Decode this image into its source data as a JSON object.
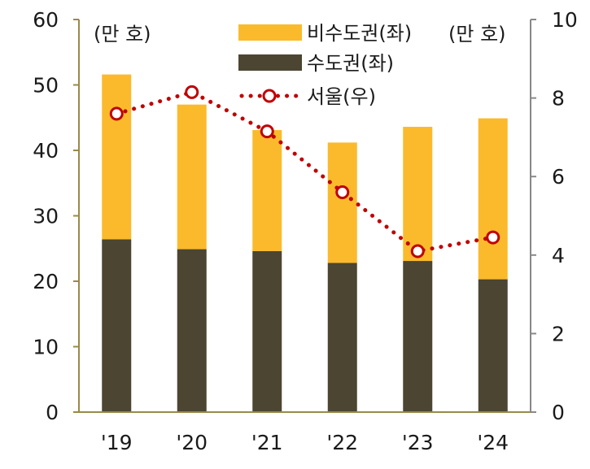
{
  "chart_data": {
    "type": "bar",
    "categories": [
      "'19",
      "'20",
      "'21",
      "'22",
      "'23",
      "'24"
    ],
    "series": [
      {
        "name": "수도권(좌)",
        "kind": "bar",
        "axis": "left",
        "color": "#4b4532",
        "values": [
          26.4,
          24.9,
          24.6,
          22.8,
          23.1,
          20.3
        ]
      },
      {
        "name": "비수도권(좌)",
        "kind": "bar",
        "axis": "left",
        "color": "#fbba2c",
        "values": [
          25.2,
          22.1,
          18.5,
          18.4,
          20.5,
          24.6
        ]
      },
      {
        "name": "서울(우)",
        "kind": "line",
        "axis": "right",
        "color": "#c00000",
        "values": [
          7.6,
          8.15,
          7.15,
          5.6,
          4.1,
          4.45
        ]
      }
    ],
    "stacked": true,
    "left_axis": {
      "unit_label": "(만 호)",
      "ylim": [
        0,
        60
      ],
      "ticks": [
        "0",
        "10",
        "20",
        "30",
        "40",
        "50",
        "60"
      ]
    },
    "right_axis": {
      "unit_label": "(만 호)",
      "ylim": [
        0,
        10
      ],
      "ticks": [
        "0",
        "2",
        "4",
        "6",
        "8",
        "10"
      ]
    },
    "legend": {
      "placement": "top-right",
      "items": [
        "비수도권(좌)",
        "수도권(좌)",
        "서울(우)"
      ]
    },
    "grid": false
  }
}
